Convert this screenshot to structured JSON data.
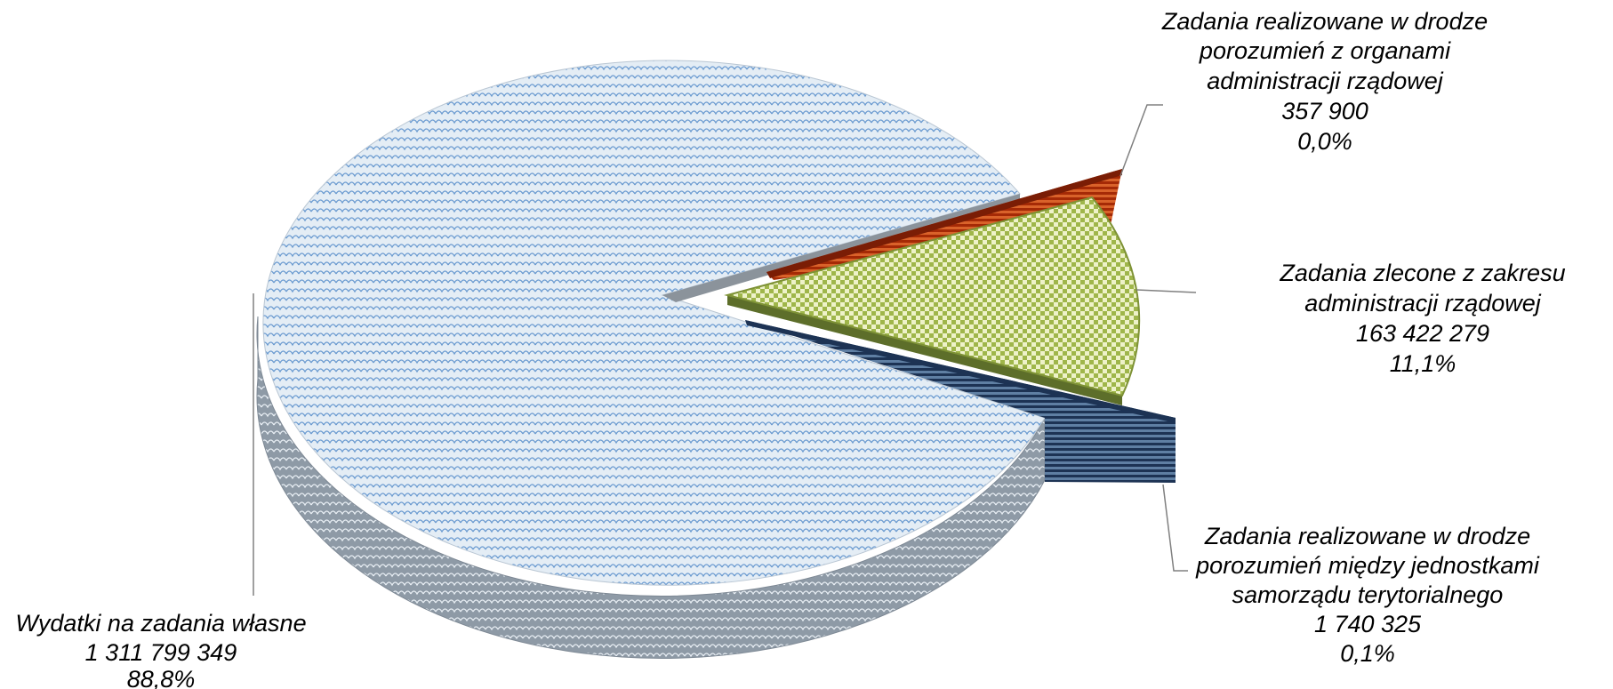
{
  "chart_data": {
    "type": "pie",
    "title": "",
    "slices": [
      {
        "name": "Wydatki na zadania własne",
        "value_text": "1 311 799 349",
        "percent_text": "88,8%",
        "value": 1311799349,
        "color": "#dfe9f2",
        "pattern": "tile-blue"
      },
      {
        "name": "Zadania realizowane w drodze porozumień z organami administracji rządowej",
        "value_text": "357 900",
        "percent_text": "0,0%",
        "value": 357900,
        "color": "#c0390b",
        "pattern": "stripe-red"
      },
      {
        "name": "Zadania zlecone z zakresu administracji rządowej",
        "value_text": "163 422 279",
        "percent_text": "11,1%",
        "value": 163422279,
        "color": "#c4d67a",
        "pattern": "check-green"
      },
      {
        "name": "Zadania realizowane w drodze porozumień między jednostkami samorządu terytorialnego",
        "value_text": "1 740 325",
        "percent_text": "0,1%",
        "value": 1740325,
        "color": "#1f3f66",
        "pattern": "stripe-navy"
      }
    ],
    "labels": {
      "own": [
        "Wydatki na zadania własne",
        "1 311 799 349",
        "88,8%"
      ],
      "gov_agreements": [
        "Zadania realizowane w drodze",
        "porozumień z organami",
        "administracji rządowej",
        "357 900",
        "0,0%"
      ],
      "commissioned": [
        "Zadania zlecone z zakresu",
        "administracji rządowej",
        "163 422 279",
        "11,1%"
      ],
      "local_agreements": [
        "Zadania realizowane w drodze",
        "porozumień między jednostkami",
        "samorządu terytorialnego",
        "1 740 325",
        "0,1%"
      ]
    }
  }
}
